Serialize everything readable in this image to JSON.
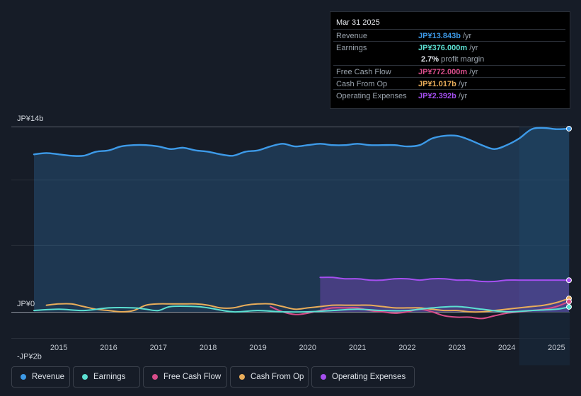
{
  "tooltip": {
    "date": "Mar 31 2025",
    "revenue_label": "Revenue",
    "revenue_value": "JP¥13.843b",
    "earnings_label": "Earnings",
    "earnings_value": "JP¥376.000m",
    "margin_value": "2.7%",
    "margin_label": "profit margin",
    "fcf_label": "Free Cash Flow",
    "fcf_value": "JP¥772.000m",
    "cfo_label": "Cash From Op",
    "cfo_value": "JP¥1.017b",
    "opex_label": "Operating Expenses",
    "opex_value": "JP¥2.392b",
    "unit": "/yr"
  },
  "legend": [
    {
      "label": "Revenue",
      "color": "#3d9ae8"
    },
    {
      "label": "Earnings",
      "color": "#5ce0d2"
    },
    {
      "label": "Free Cash Flow",
      "color": "#d84d8a"
    },
    {
      "label": "Cash From Op",
      "color": "#e9ad5a"
    },
    {
      "label": "Operating Expenses",
      "color": "#a54ff0"
    }
  ],
  "chart_data": {
    "type": "area",
    "title": "",
    "xlabel": "",
    "ylabel": "",
    "y_tick_labels": [
      "JP¥14b",
      "JP¥0",
      "-JP¥2b"
    ],
    "y_ticks": [
      14,
      0,
      -2
    ],
    "ylim": [
      -2,
      14
    ],
    "xlim": [
      2014.5,
      2025.25
    ],
    "x_tick_labels": [
      "2015",
      "2016",
      "2017",
      "2018",
      "2019",
      "2020",
      "2021",
      "2022",
      "2023",
      "2024",
      "2025"
    ],
    "x_ticks": [
      2015,
      2016,
      2017,
      2018,
      2019,
      2020,
      2021,
      2022,
      2023,
      2024,
      2025
    ],
    "highlight_from": 2024.25,
    "series": [
      {
        "name": "Revenue",
        "color": "#3d9ae8",
        "fill": true,
        "points": [
          [
            2014.5,
            11.9
          ],
          [
            2014.75,
            12.0
          ],
          [
            2015.0,
            11.9
          ],
          [
            2015.25,
            11.8
          ],
          [
            2015.5,
            11.8
          ],
          [
            2015.75,
            12.1
          ],
          [
            2016.0,
            12.2
          ],
          [
            2016.25,
            12.5
          ],
          [
            2016.5,
            12.6
          ],
          [
            2016.75,
            12.6
          ],
          [
            2017.0,
            12.5
          ],
          [
            2017.25,
            12.3
          ],
          [
            2017.5,
            12.4
          ],
          [
            2017.75,
            12.2
          ],
          [
            2018.0,
            12.1
          ],
          [
            2018.25,
            11.9
          ],
          [
            2018.5,
            11.8
          ],
          [
            2018.75,
            12.1
          ],
          [
            2019.0,
            12.2
          ],
          [
            2019.25,
            12.5
          ],
          [
            2019.5,
            12.7
          ],
          [
            2019.75,
            12.5
          ],
          [
            2020.0,
            12.6
          ],
          [
            2020.25,
            12.7
          ],
          [
            2020.5,
            12.6
          ],
          [
            2020.75,
            12.6
          ],
          [
            2021.0,
            12.7
          ],
          [
            2021.25,
            12.6
          ],
          [
            2021.5,
            12.6
          ],
          [
            2021.75,
            12.6
          ],
          [
            2022.0,
            12.5
          ],
          [
            2022.25,
            12.6
          ],
          [
            2022.5,
            13.1
          ],
          [
            2022.75,
            13.3
          ],
          [
            2023.0,
            13.3
          ],
          [
            2023.25,
            13.0
          ],
          [
            2023.5,
            12.6
          ],
          [
            2023.75,
            12.3
          ],
          [
            2024.0,
            12.6
          ],
          [
            2024.25,
            13.1
          ],
          [
            2024.5,
            13.8
          ],
          [
            2024.75,
            13.9
          ],
          [
            2025.0,
            13.8
          ],
          [
            2025.25,
            13.843
          ]
        ]
      },
      {
        "name": "Operating Expenses",
        "color": "#a54ff0",
        "fill": true,
        "points": [
          [
            2020.25,
            2.6
          ],
          [
            2020.5,
            2.6
          ],
          [
            2020.75,
            2.5
          ],
          [
            2021.0,
            2.5
          ],
          [
            2021.25,
            2.4
          ],
          [
            2021.5,
            2.4
          ],
          [
            2021.75,
            2.5
          ],
          [
            2022.0,
            2.5
          ],
          [
            2022.25,
            2.4
          ],
          [
            2022.5,
            2.5
          ],
          [
            2022.75,
            2.5
          ],
          [
            2023.0,
            2.4
          ],
          [
            2023.25,
            2.4
          ],
          [
            2023.5,
            2.3
          ],
          [
            2023.75,
            2.3
          ],
          [
            2024.0,
            2.4
          ],
          [
            2024.25,
            2.4
          ],
          [
            2024.5,
            2.4
          ],
          [
            2024.75,
            2.4
          ],
          [
            2025.0,
            2.4
          ],
          [
            2025.25,
            2.392
          ]
        ]
      },
      {
        "name": "Cash From Op",
        "color": "#e9ad5a",
        "fill": false,
        "points": [
          [
            2014.75,
            0.5
          ],
          [
            2015.0,
            0.6
          ],
          [
            2015.25,
            0.6
          ],
          [
            2015.5,
            0.4
          ],
          [
            2015.75,
            0.2
          ],
          [
            2016.0,
            0.1
          ],
          [
            2016.25,
            0.0
          ],
          [
            2016.5,
            0.1
          ],
          [
            2016.75,
            0.5
          ],
          [
            2017.0,
            0.6
          ],
          [
            2017.25,
            0.6
          ],
          [
            2017.5,
            0.6
          ],
          [
            2017.75,
            0.6
          ],
          [
            2018.0,
            0.5
          ],
          [
            2018.25,
            0.3
          ],
          [
            2018.5,
            0.3
          ],
          [
            2018.75,
            0.5
          ],
          [
            2019.0,
            0.6
          ],
          [
            2019.25,
            0.6
          ],
          [
            2019.5,
            0.4
          ],
          [
            2019.75,
            0.2
          ],
          [
            2020.0,
            0.3
          ],
          [
            2020.25,
            0.4
          ],
          [
            2020.5,
            0.5
          ],
          [
            2020.75,
            0.5
          ],
          [
            2021.0,
            0.5
          ],
          [
            2021.25,
            0.5
          ],
          [
            2021.5,
            0.4
          ],
          [
            2021.75,
            0.3
          ],
          [
            2022.0,
            0.3
          ],
          [
            2022.25,
            0.3
          ],
          [
            2022.5,
            0.2
          ],
          [
            2022.75,
            0.1
          ],
          [
            2023.0,
            0.1
          ],
          [
            2023.25,
            0.0
          ],
          [
            2023.5,
            0.0
          ],
          [
            2023.75,
            0.1
          ],
          [
            2024.0,
            0.2
          ],
          [
            2024.25,
            0.3
          ],
          [
            2024.5,
            0.4
          ],
          [
            2024.75,
            0.5
          ],
          [
            2025.0,
            0.7
          ],
          [
            2025.25,
            1.017
          ]
        ]
      },
      {
        "name": "Free Cash Flow",
        "color": "#d84d8a",
        "fill": false,
        "points": [
          [
            2019.25,
            0.4
          ],
          [
            2019.5,
            0.0
          ],
          [
            2019.75,
            -0.2
          ],
          [
            2020.0,
            -0.1
          ],
          [
            2020.25,
            0.1
          ],
          [
            2020.5,
            0.3
          ],
          [
            2020.75,
            0.3
          ],
          [
            2021.0,
            0.3
          ],
          [
            2021.25,
            0.1
          ],
          [
            2021.5,
            0.0
          ],
          [
            2021.75,
            -0.1
          ],
          [
            2022.0,
            0.0
          ],
          [
            2022.25,
            0.2
          ],
          [
            2022.5,
            0.0
          ],
          [
            2022.75,
            -0.3
          ],
          [
            2023.0,
            -0.4
          ],
          [
            2023.25,
            -0.4
          ],
          [
            2023.5,
            -0.5
          ],
          [
            2023.75,
            -0.3
          ],
          [
            2024.0,
            -0.1
          ],
          [
            2024.25,
            0.0
          ],
          [
            2024.5,
            0.1
          ],
          [
            2024.75,
            0.2
          ],
          [
            2025.0,
            0.4
          ],
          [
            2025.25,
            0.772
          ]
        ]
      },
      {
        "name": "Earnings",
        "color": "#5ce0d2",
        "fill": false,
        "points": [
          [
            2014.5,
            0.1
          ],
          [
            2015.0,
            0.2
          ],
          [
            2015.5,
            0.1
          ],
          [
            2016.0,
            0.3
          ],
          [
            2016.5,
            0.3
          ],
          [
            2016.75,
            0.2
          ],
          [
            2017.0,
            0.1
          ],
          [
            2017.25,
            0.4
          ],
          [
            2017.75,
            0.4
          ],
          [
            2018.0,
            0.3
          ],
          [
            2018.5,
            0.0
          ],
          [
            2019.0,
            0.1
          ],
          [
            2019.5,
            0.0
          ],
          [
            2020.0,
            0.0
          ],
          [
            2020.5,
            0.1
          ],
          [
            2021.0,
            0.2
          ],
          [
            2021.5,
            0.1
          ],
          [
            2022.0,
            0.1
          ],
          [
            2022.5,
            0.3
          ],
          [
            2023.0,
            0.4
          ],
          [
            2023.5,
            0.2
          ],
          [
            2024.0,
            0.0
          ],
          [
            2024.5,
            0.1
          ],
          [
            2025.0,
            0.2
          ],
          [
            2025.25,
            0.376
          ]
        ]
      }
    ]
  }
}
